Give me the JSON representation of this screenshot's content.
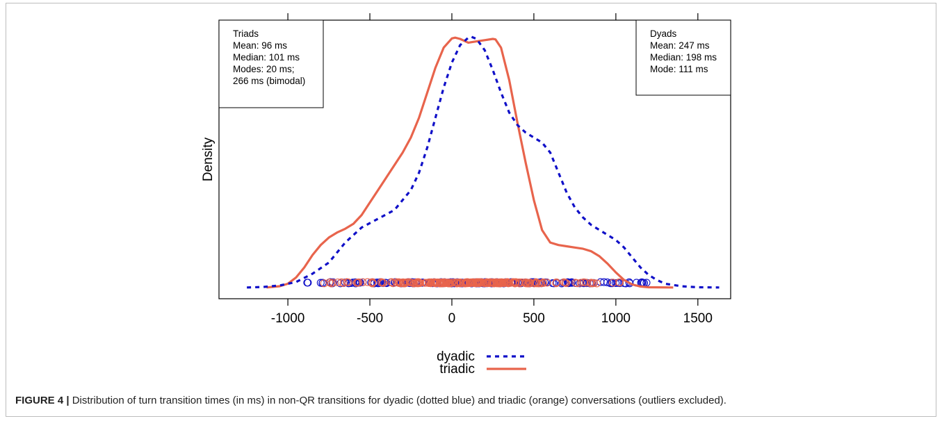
{
  "caption": {
    "label": "FIGURE 4 |",
    "text": " Distribution of turn transition times (in ms) in non-QR transitions for dyadic (dotted blue) and triadic (orange) conversations (outliers excluded)."
  },
  "chart_data": {
    "type": "line",
    "xlabel": "",
    "ylabel": "Density",
    "xlim": [
      -1420,
      1700
    ],
    "ylim": [
      -0.045,
      1.07
    ],
    "xticks": [
      -1000,
      -500,
      0,
      500,
      1000,
      1500
    ],
    "xtick_labels": [
      "-1000",
      "-500",
      "0",
      "500",
      "1000",
      "1500"
    ],
    "top_ticks": [
      -1000,
      -500,
      0,
      500,
      1000,
      1500
    ],
    "grid": false,
    "legend": {
      "placement": "bottom-center",
      "entries": [
        "dyadic",
        "triadic"
      ]
    },
    "colors": {
      "dyadic": "#1010c8",
      "triadic": "#e8644c"
    },
    "series": [
      {
        "name": "dyadic",
        "style": "dotted",
        "x": [
          -1250,
          -1150,
          -1050,
          -950,
          -850,
          -750,
          -650,
          -550,
          -450,
          -350,
          -250,
          -200,
          -150,
          -100,
          -50,
          0,
          50,
          100,
          120,
          150,
          200,
          250,
          300,
          350,
          400,
          450,
          500,
          550,
          600,
          650,
          700,
          750,
          800,
          850,
          900,
          950,
          1000,
          1050,
          1100,
          1150,
          1200,
          1250,
          1300,
          1400,
          1500,
          1630
        ],
        "y": [
          0.0,
          0.002,
          0.008,
          0.022,
          0.055,
          0.1,
          0.18,
          0.24,
          0.275,
          0.31,
          0.39,
          0.46,
          0.56,
          0.68,
          0.8,
          0.9,
          0.97,
          1.0,
          1.003,
          0.995,
          0.95,
          0.87,
          0.78,
          0.7,
          0.65,
          0.62,
          0.6,
          0.58,
          0.54,
          0.46,
          0.38,
          0.32,
          0.28,
          0.25,
          0.23,
          0.21,
          0.19,
          0.16,
          0.12,
          0.08,
          0.05,
          0.03,
          0.015,
          0.005,
          0.001,
          0.0
        ]
      },
      {
        "name": "triadic",
        "style": "solid",
        "x": [
          -1130,
          -1050,
          -1000,
          -950,
          -900,
          -850,
          -800,
          -750,
          -700,
          -650,
          -600,
          -550,
          -500,
          -450,
          -400,
          -350,
          -300,
          -250,
          -200,
          -150,
          -100,
          -50,
          0,
          20,
          50,
          100,
          150,
          200,
          250,
          266,
          300,
          350,
          400,
          450,
          500,
          550,
          600,
          650,
          700,
          750,
          800,
          850,
          900,
          950,
          1000,
          1050,
          1100,
          1150,
          1200,
          1350
        ],
        "y": [
          0.0,
          0.005,
          0.015,
          0.04,
          0.08,
          0.13,
          0.17,
          0.2,
          0.22,
          0.235,
          0.255,
          0.29,
          0.34,
          0.39,
          0.44,
          0.49,
          0.54,
          0.6,
          0.68,
          0.78,
          0.88,
          0.96,
          0.997,
          1.0,
          0.995,
          0.98,
          0.985,
          0.99,
          0.995,
          0.993,
          0.96,
          0.83,
          0.66,
          0.5,
          0.35,
          0.23,
          0.18,
          0.17,
          0.165,
          0.16,
          0.155,
          0.145,
          0.125,
          0.095,
          0.06,
          0.03,
          0.012,
          0.004,
          0.001,
          0.0
        ]
      }
    ],
    "rug_range_dyadic": [
      -900,
      1280
    ],
    "rug_range_triadic": [
      -780,
      1060
    ]
  },
  "annotations": {
    "triads": [
      "Triads",
      "Mean: 96 ms",
      "Median: 101 ms",
      "Modes:  20 ms;",
      "266 ms (bimodal)"
    ],
    "dyads": [
      "Dyads",
      "Mean: 247 ms",
      "Median: 198 ms",
      "Mode:  111 ms"
    ]
  }
}
